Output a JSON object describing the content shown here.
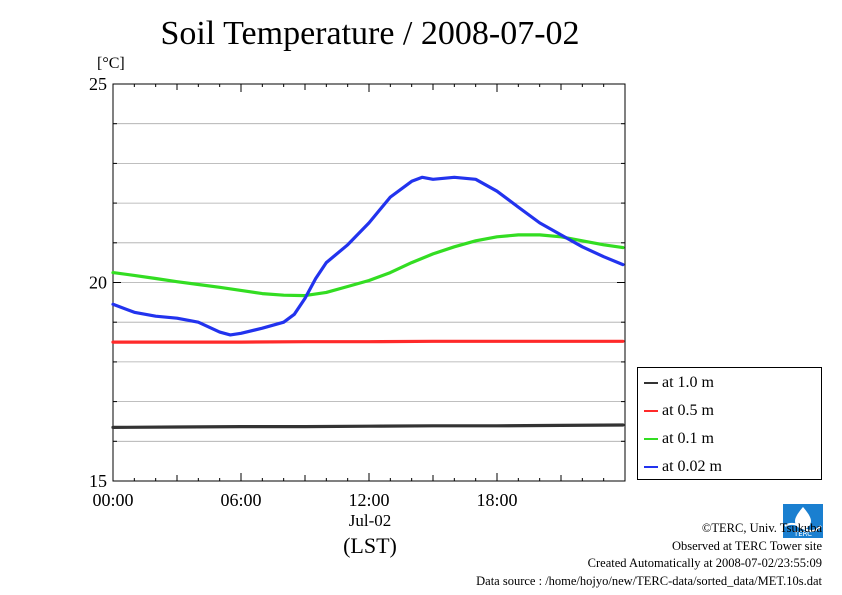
{
  "chart_data": {
    "type": "line",
    "title": "Soil Temperature / 2008-07-02",
    "unit_label": "[°C]",
    "ylim": [
      15,
      25
    ],
    "yticks": [
      "25",
      "20",
      "15"
    ],
    "xticks": [
      "00:00",
      "06:00",
      "12:00",
      "18:00"
    ],
    "xlim_hours": [
      0,
      24
    ],
    "x_date_label": "Jul-02",
    "x_axis_label": "(LST)",
    "grid": true,
    "legend_position": "bottom-right",
    "series": [
      {
        "name": "at 1.0 m",
        "color": "#333333",
        "x": [
          0,
          3,
          6,
          9,
          12,
          15,
          18,
          21,
          23.9
        ],
        "y": [
          16.35,
          16.36,
          16.37,
          16.37,
          16.38,
          16.39,
          16.39,
          16.4,
          16.41
        ]
      },
      {
        "name": "at 0.5 m",
        "color": "#ff2a2a",
        "x": [
          0,
          3,
          6,
          9,
          12,
          15,
          18,
          21,
          23.9
        ],
        "y": [
          18.5,
          18.5,
          18.5,
          18.51,
          18.51,
          18.52,
          18.52,
          18.52,
          18.52
        ]
      },
      {
        "name": "at 0.1 m",
        "color": "#33dd22",
        "x": [
          0,
          1,
          2,
          3,
          4,
          5,
          6,
          7,
          8,
          9,
          10,
          11,
          12,
          13,
          14,
          15,
          16,
          17,
          18,
          19,
          20,
          21,
          22,
          23,
          23.9
        ],
        "y": [
          20.25,
          20.18,
          20.1,
          20.02,
          19.95,
          19.88,
          19.8,
          19.72,
          19.68,
          19.67,
          19.75,
          19.9,
          20.05,
          20.25,
          20.5,
          20.72,
          20.9,
          21.05,
          21.15,
          21.2,
          21.2,
          21.15,
          21.05,
          20.95,
          20.88
        ]
      },
      {
        "name": "at 0.02 m",
        "color": "#2233ee",
        "x": [
          0,
          1,
          2,
          3,
          4,
          5,
          5.5,
          6,
          7,
          8,
          8.5,
          9,
          9.5,
          10,
          11,
          12,
          13,
          14,
          14.5,
          15,
          16,
          17,
          18,
          19,
          20,
          21,
          22,
          23,
          23.9
        ],
        "y": [
          19.45,
          19.25,
          19.15,
          19.1,
          19.0,
          18.75,
          18.68,
          18.72,
          18.85,
          19.0,
          19.2,
          19.6,
          20.1,
          20.5,
          20.95,
          21.5,
          22.15,
          22.55,
          22.65,
          22.6,
          22.65,
          22.6,
          22.3,
          21.9,
          21.5,
          21.2,
          20.9,
          20.65,
          20.45
        ]
      }
    ]
  },
  "credits": {
    "copyright": "©TERC, Univ. Tsukuba",
    "observed": "Observed at TERC Tower site",
    "created": "Created Automatically at 2008-07-02/23:55:09",
    "source": "Data source : /home/hojyo/new/TERC-data/sorted_data/MET.10s.dat"
  },
  "logo": {
    "text": "TERC"
  }
}
